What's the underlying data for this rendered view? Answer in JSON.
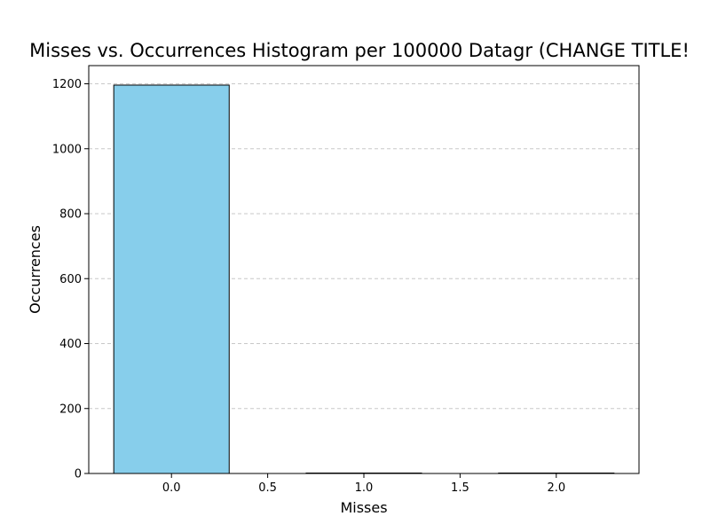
{
  "chart_data": {
    "type": "bar",
    "title": "Misses vs. Occurrences Histogram per 100000 Datagr (CHANGE TITLE!",
    "xlabel": "Misses",
    "ylabel": "Occurrences",
    "x": [
      0,
      1,
      2
    ],
    "values": [
      1196,
      0,
      0
    ],
    "bar_width": 0.6,
    "xlim": [
      -0.43,
      2.43
    ],
    "ylim": [
      0,
      1256
    ],
    "xticks": [
      0.0,
      0.5,
      1.0,
      1.5,
      2.0
    ],
    "xtick_labels": [
      "0.0",
      "0.5",
      "1.0",
      "1.5",
      "2.0"
    ],
    "yticks": [
      0,
      200,
      400,
      600,
      800,
      1000,
      1200
    ],
    "ytick_labels": [
      "0",
      "200",
      "400",
      "600",
      "800",
      "1000",
      "1200"
    ],
    "grid": {
      "axis": "y",
      "style": "dashed"
    },
    "colors": {
      "bar_fill": "#87CEEB",
      "bar_edge": "#000000",
      "grid": "#c8c8c8"
    }
  }
}
